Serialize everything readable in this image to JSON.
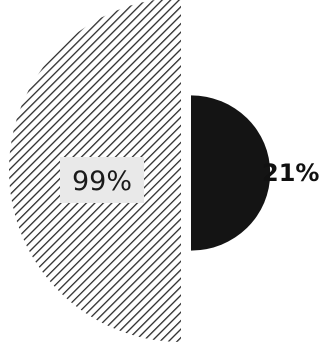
{
  "chart_data": {
    "type": "pie",
    "title": "",
    "slices": [
      {
        "label": "99%",
        "value": 99,
        "pattern": "diagonal-hatch",
        "color": "#222222"
      },
      {
        "label": "21%",
        "value": 21,
        "pattern": "solid",
        "color": "#141414"
      }
    ],
    "legend": "none",
    "grid": false
  }
}
